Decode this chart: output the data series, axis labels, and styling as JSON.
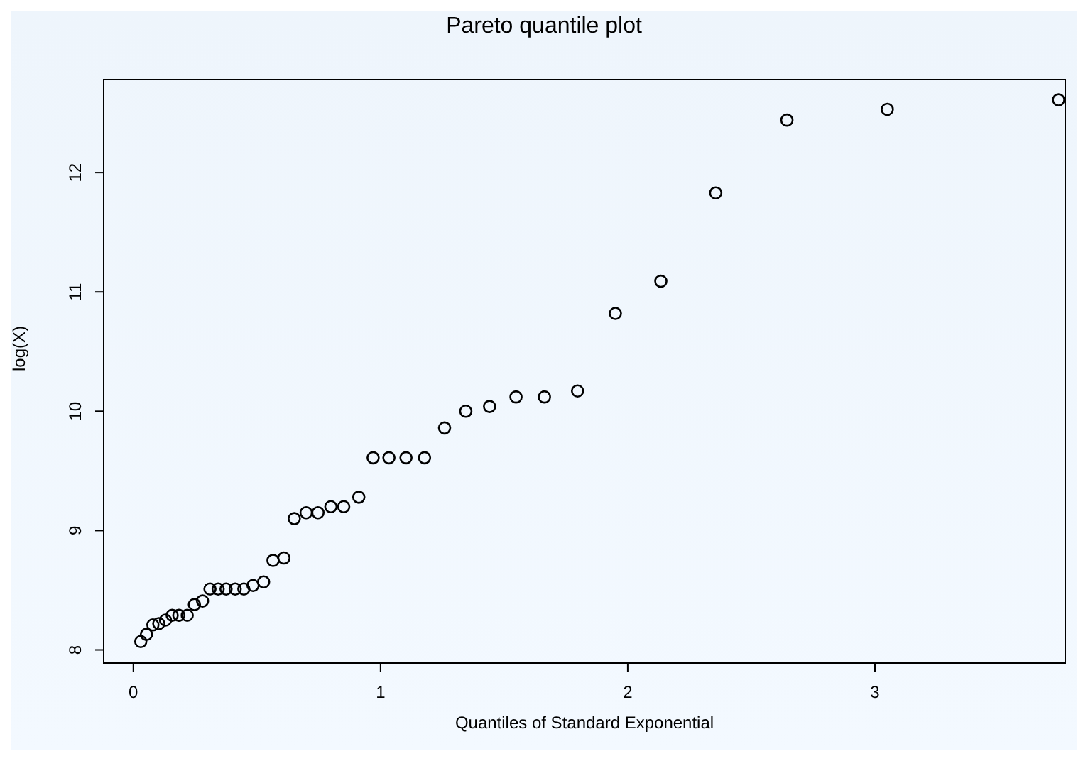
{
  "chart_data": {
    "type": "scatter",
    "title": "Pareto quantile plot",
    "xlabel": "Quantiles of Standard Exponential",
    "ylabel": "log(X)",
    "marker": "circle",
    "grid": false,
    "x": [
      0.03,
      0.053,
      0.079,
      0.103,
      0.13,
      0.157,
      0.184,
      0.218,
      0.247,
      0.28,
      0.31,
      0.343,
      0.375,
      0.412,
      0.447,
      0.484,
      0.527,
      0.565,
      0.609,
      0.651,
      0.699,
      0.747,
      0.799,
      0.851,
      0.912,
      0.97,
      1.034,
      1.103,
      1.178,
      1.259,
      1.345,
      1.441,
      1.548,
      1.663,
      1.797,
      1.95,
      2.134,
      2.356,
      2.644,
      3.05,
      3.743
    ],
    "values": [
      8.07,
      8.13,
      8.21,
      8.22,
      8.25,
      8.29,
      8.29,
      8.29,
      8.38,
      8.41,
      8.51,
      8.51,
      8.51,
      8.51,
      8.51,
      8.54,
      8.57,
      8.75,
      8.77,
      9.1,
      9.15,
      9.15,
      9.2,
      9.2,
      9.28,
      9.61,
      9.61,
      9.61,
      9.61,
      9.86,
      10.0,
      10.04,
      10.12,
      10.12,
      10.17,
      10.82,
      11.09,
      11.83,
      12.44,
      12.53,
      12.61
    ],
    "color": "#000000",
    "xlim": [
      -0.12,
      3.77
    ],
    "ylim": [
      7.89,
      12.78
    ],
    "xticks": [
      0,
      1,
      2,
      3
    ],
    "yticks": [
      8,
      9,
      10,
      11,
      12
    ]
  }
}
